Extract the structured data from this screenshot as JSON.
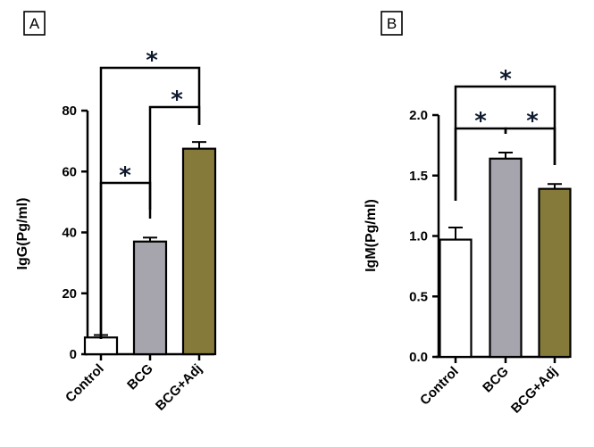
{
  "chart_data": [
    {
      "type": "bar",
      "panel": "A",
      "categories": [
        "Control",
        "BCG",
        "BCG+Adj"
      ],
      "values": [
        5.5,
        37,
        67.5
      ],
      "errors": [
        0.8,
        1.3,
        2.2
      ],
      "colors": [
        "#ffffff",
        "#a6a5ad",
        "#857a3a"
      ],
      "ylabel": "IgG(Pg/ml)",
      "ylim": [
        0,
        80
      ],
      "yticks": [
        0,
        20,
        40,
        60,
        80
      ],
      "ytick_labels": [
        "0",
        "20",
        "40",
        "60",
        "80"
      ],
      "comparisons": [
        {
          "from": "Control",
          "to": "BCG",
          "symbol": "*"
        },
        {
          "from": "BCG",
          "to": "BCG+Adj",
          "symbol": "*"
        },
        {
          "from": "Control",
          "to": "BCG+Adj",
          "symbol": "*"
        }
      ]
    },
    {
      "type": "bar",
      "panel": "B",
      "categories": [
        "Control",
        "BCG",
        "BCG+Adj"
      ],
      "values": [
        0.97,
        1.64,
        1.39
      ],
      "errors": [
        0.1,
        0.05,
        0.04
      ],
      "colors": [
        "#ffffff",
        "#a6a5ad",
        "#857a3a"
      ],
      "ylabel": "IgM(Pg/ml)",
      "ylim": [
        0,
        2.0
      ],
      "yticks": [
        0,
        0.5,
        1.0,
        1.5,
        2.0
      ],
      "ytick_labels": [
        "0.0",
        "0.5",
        "1.0",
        "1.5",
        "2.0"
      ],
      "comparisons": [
        {
          "from": "Control",
          "to": "BCG",
          "symbol": "*"
        },
        {
          "from": "BCG",
          "to": "BCG+Adj",
          "symbol": "*"
        },
        {
          "from": "Control",
          "to": "BCG+Adj",
          "symbol": "*"
        }
      ]
    }
  ]
}
